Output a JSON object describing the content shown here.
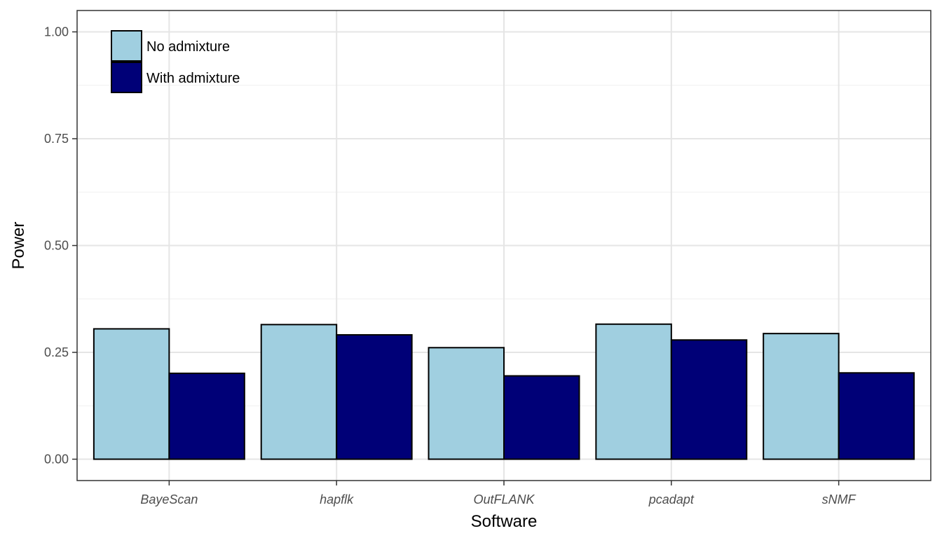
{
  "chart_data": {
    "type": "bar",
    "xlabel": "Software",
    "ylabel": "Power",
    "categories": [
      "BayeScan",
      "hapflk",
      "OutFLANK",
      "pcadapt",
      "sNMF"
    ],
    "series": [
      {
        "name": "No admixture",
        "color": "#a0cfe0",
        "values": [
          0.305,
          0.315,
          0.261,
          0.316,
          0.294
        ]
      },
      {
        "name": "With admixture",
        "color": "#000077",
        "values": [
          0.201,
          0.291,
          0.195,
          0.279,
          0.202
        ]
      }
    ],
    "ylim": [
      -0.05,
      1.05
    ],
    "yticks": [
      0.0,
      0.25,
      0.5,
      0.75,
      1.0
    ],
    "ytick_labels": [
      "0.00",
      "0.25",
      "0.50",
      "0.75",
      "1.00"
    ],
    "grid": true,
    "legend_position": "top-left"
  }
}
